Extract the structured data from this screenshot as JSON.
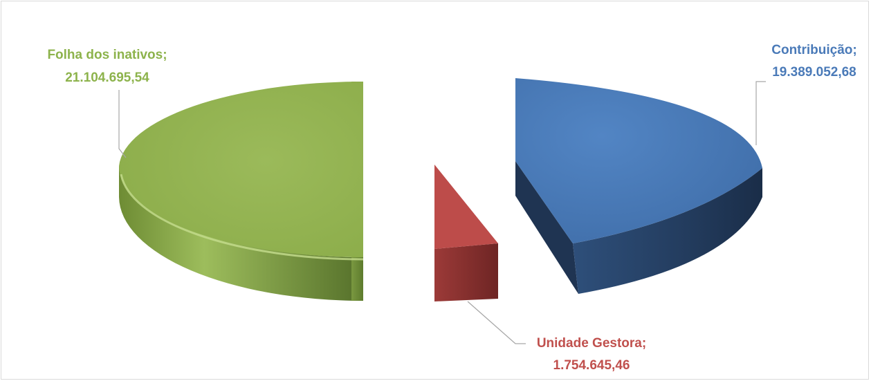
{
  "chart_data": {
    "type": "pie",
    "style": "3d-exploded",
    "title": "",
    "slices": [
      {
        "name": "Contribuição",
        "value": 19389052.68,
        "value_label": "19.389.052,68",
        "color": "#4a7ab8"
      },
      {
        "name": "Unidade Gestora",
        "value": 1754645.46,
        "value_label": "1.754.645,46",
        "color": "#bd4c4a"
      },
      {
        "name": "Folha dos inativos",
        "value": 21104695.54,
        "value_label": "21.104.695,54",
        "color": "#96b555"
      }
    ],
    "legend": "none",
    "data_labels": "outside, name and value"
  }
}
